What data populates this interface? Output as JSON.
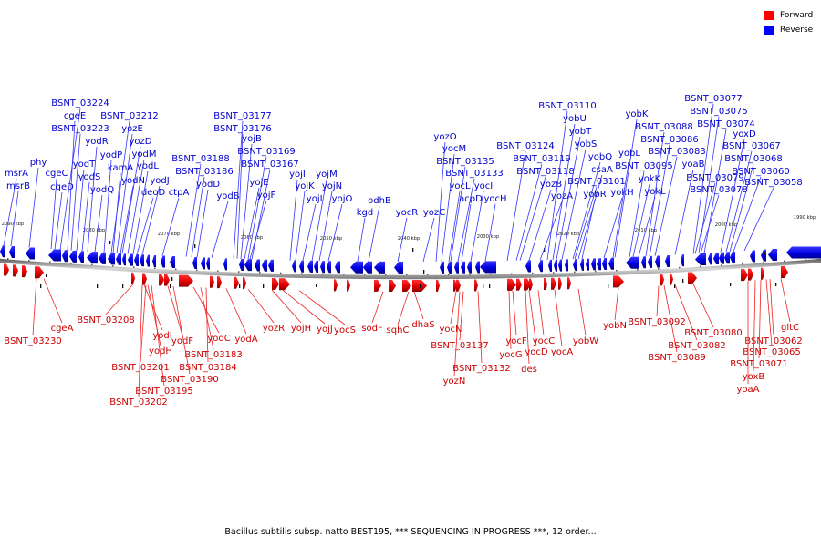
{
  "legend": {
    "items": [
      {
        "label": "Forward",
        "color": "#ff0000"
      },
      {
        "label": "Reverse",
        "color": "#0000ff"
      }
    ]
  },
  "colors": {
    "forward": "#ee0000",
    "reverse": "#1010ee",
    "forward_label": "#cc0000",
    "reverse_label": "#0000cc",
    "backbone": "#888888"
  },
  "caption": "Bacillus subtilis subsp. natto BEST195, *** SEQUENCING IN PROGRESS ***, 12 order...",
  "ticks": [
    "2090 kbp",
    "2080 kbp",
    "2070 kbp",
    "2060 kbp",
    "2050 kbp",
    "2040 kbp",
    "2030 kbp",
    "2020 kbp",
    "2010 kbp",
    "2000 kbp",
    "1990 kbp"
  ],
  "reverse_genes": [
    "msrA",
    "msrB",
    "phy",
    "cgeC",
    "cgeD",
    "BSNT_03224",
    "cgeE",
    "BSNT_03223",
    "yodT",
    "yodS",
    "yodR",
    "yodQ",
    "yodP",
    "BSNT_03212",
    "yozE",
    "kamA",
    "yozD",
    "yodM",
    "yodN",
    "yodL",
    "deoD",
    "yodJ",
    "ctpA",
    "BSNT_03188",
    "BSNT_03186",
    "yodD",
    "yodB",
    "BSNT_03177",
    "BSNT_03176",
    "yojB",
    "BSNT_03169",
    "BSNT_03167",
    "yojE",
    "yojF",
    "yojI",
    "yojK",
    "yojL",
    "yojM",
    "yojN",
    "yojO",
    "kgd",
    "odhB",
    "yocR",
    "yozC",
    "yozO",
    "yocM",
    "BSNT_03135",
    "BSNT_03133",
    "yocL",
    "yocI",
    "acpD",
    "yocH",
    "BSNT_03124",
    "BSNT_03119",
    "BSNT_03118",
    "yozB",
    "yozA",
    "BSNT_03110",
    "yobU",
    "yobT",
    "yobS",
    "yobQ",
    "csaA",
    "BSNT_03101",
    "yobR",
    "yokH",
    "yobK",
    "yobL",
    "BSNT_03095",
    "yokK",
    "yokL",
    "BSNT_03088",
    "BSNT_03086",
    "BSNT_03083",
    "yoaB",
    "BSNT_03077",
    "BSNT_03075",
    "BSNT_03074",
    "BSNT_03079",
    "BSNT_03078",
    "yoxD",
    "BSNT_03067",
    "BSNT_03068",
    "BSNT_03060",
    "BSNT_03058"
  ],
  "forward_genes": [
    "BSNT_03230",
    "cgeA",
    "BSNT_03208",
    "yodI",
    "yodH",
    "BSNT_03201",
    "BSNT_03195",
    "BSNT_03202",
    "yodF",
    "yodC",
    "BSNT_03183",
    "BSNT_03184",
    "BSNT_03190",
    "yodA",
    "yozR",
    "yojH",
    "yojJ",
    "yocS",
    "sodF",
    "sqhC",
    "dhaS",
    "yocN",
    "BSNT_03137",
    "yozN",
    "BSNT_03132",
    "yocF",
    "yocG",
    "yocD",
    "des",
    "yocC",
    "yocA",
    "yobW",
    "yobN",
    "BSNT_03092",
    "BSNT_03089",
    "BSNT_03082",
    "BSNT_03080",
    "gltC",
    "BSNT_03062",
    "BSNT_03065",
    "BSNT_03071",
    "yoxB",
    "yoaA"
  ]
}
